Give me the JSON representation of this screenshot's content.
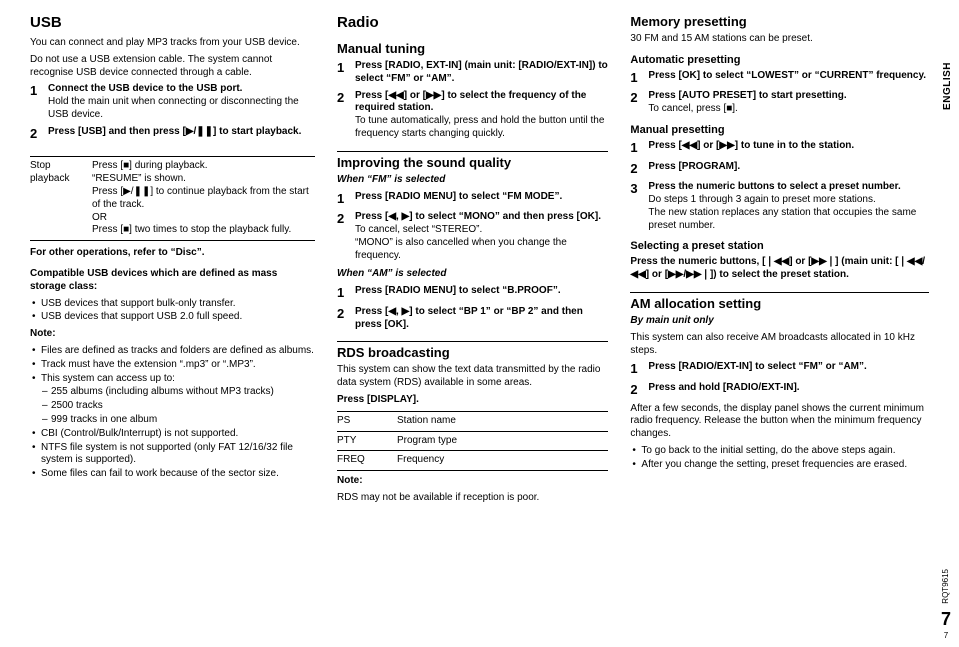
{
  "lang_tab": "ENGLISH",
  "footer": {
    "code": "RQT9615",
    "page_big": "7",
    "page_small": "7"
  },
  "col1": {
    "h_usb": "USB",
    "usb_intro1": "You can connect and play MP3 tracks from your USB device.",
    "usb_intro2": "Do not use a USB extension cable. The system cannot recognise USB device connected through a cable.",
    "usb_steps": [
      {
        "main": "Connect the USB device to the USB port.",
        "extra": "Hold the main unit when connecting or disconnecting the USB device."
      },
      {
        "main": "Press [USB] and then press [▶/❚❚] to start playback."
      }
    ],
    "stop_row": {
      "label": "Stop playback",
      "body": "Press [■] during playback.\n“RESUME” is shown.\nPress [▶/❚❚] to continue playback from the start of the track.\nOR\nPress [■] two times to stop the playback fully."
    },
    "other_ops": "For other operations, refer to “Disc”.",
    "compat_head": "Compatible USB devices which are defined as mass storage class:",
    "compat_items": [
      "USB devices that support bulk-only transfer.",
      "USB devices that support USB 2.0 full speed."
    ],
    "note_label": "Note:",
    "note_items": [
      "Files are defined as tracks and folders are defined as albums.",
      "Track must have the extension “.mp3” or “.MP3”.",
      "This system can access up to:"
    ],
    "note_sub": [
      "255 albums (including albums without MP3 tracks)",
      "2500 tracks",
      "999 tracks in one album"
    ],
    "note_items2": [
      "CBI (Control/Bulk/Interrupt) is not supported.",
      "NTFS file system is not supported (only FAT 12/16/32 file system is supported).",
      "Some files can fail to work because of the sector size."
    ]
  },
  "col2": {
    "h_radio": "Radio",
    "h_manual": "Manual tuning",
    "manual_steps": [
      {
        "main": "Press [RADIO, EXT-IN] (main unit: [RADIO/EXT-IN]) to select “FM” or “AM”."
      },
      {
        "main": "Press [◀◀] or [▶▶] to select the frequency of the required station.",
        "extra": "To tune automatically, press and hold the button until the frequency starts changing quickly."
      }
    ],
    "h_improve": "Improving the sound quality",
    "when_fm": "When “FM” is selected",
    "fm_steps": [
      {
        "main": "Press [RADIO MENU] to select “FM MODE”."
      },
      {
        "main": "Press [◀, ▶] to select “MONO” and then press [OK].",
        "extra": "To cancel, select “STEREO”.\n“MONO” is also cancelled when you change the frequency."
      }
    ],
    "when_am": "When “AM” is selected",
    "am_steps": [
      {
        "main": "Press [RADIO MENU] to select “B.PROOF”."
      },
      {
        "main": "Press [◀, ▶] to select “BP 1” or “BP 2” and then press [OK]."
      }
    ],
    "h_rds": "RDS broadcasting",
    "rds_body": "This system can show the text data transmitted by the radio data system (RDS) available in some areas.",
    "rds_press": "Press [DISPLAY].",
    "rds_rows": [
      [
        "PS",
        "Station name"
      ],
      [
        "PTY",
        "Program type"
      ],
      [
        "FREQ",
        "Frequency"
      ]
    ],
    "rds_note_label": "Note:",
    "rds_note": "RDS may not be available if reception is poor."
  },
  "col3": {
    "h_mem": "Memory presetting",
    "mem_intro": "30 FM and 15 AM stations can be preset.",
    "h_auto": "Automatic presetting",
    "auto_steps": [
      {
        "main": "Press [OK] to select “LOWEST” or “CURRENT” frequency."
      },
      {
        "main": "Press [AUTO PRESET] to start presetting.",
        "extra": "To cancel, press [■]."
      }
    ],
    "h_mpreset": "Manual presetting",
    "mpreset_steps": [
      {
        "main": "Press [◀◀] or [▶▶] to tune in to the station."
      },
      {
        "main": "Press [PROGRAM]."
      },
      {
        "main": "Press the numeric buttons to select a preset number.",
        "extra": "Do steps 1 through 3 again to preset more stations.\nThe new station replaces any station that occupies the same preset number."
      }
    ],
    "h_select": "Selecting a preset station",
    "select_body": "Press the numeric buttons, [❘◀◀] or [▶▶❘] (main unit: [❘◀◀/◀◀] or [▶▶/▶▶❘]) to select the preset station.",
    "h_am": "AM allocation setting",
    "am_by": "By main unit only",
    "am_body": "This system can also receive AM broadcasts allocated in 10 kHz steps.",
    "am_alloc_steps": [
      {
        "main": "Press [RADIO/EXT-IN] to select “FM” or “AM”."
      },
      {
        "main": "Press and hold [RADIO/EXT-IN]."
      }
    ],
    "am_after": "After a few seconds, the display panel shows the current minimum radio frequency. Release the button when the minimum frequency changes.",
    "am_after_items": [
      "To go back to the initial setting, do the above steps again.",
      "After you change the setting, preset frequencies are erased."
    ]
  }
}
